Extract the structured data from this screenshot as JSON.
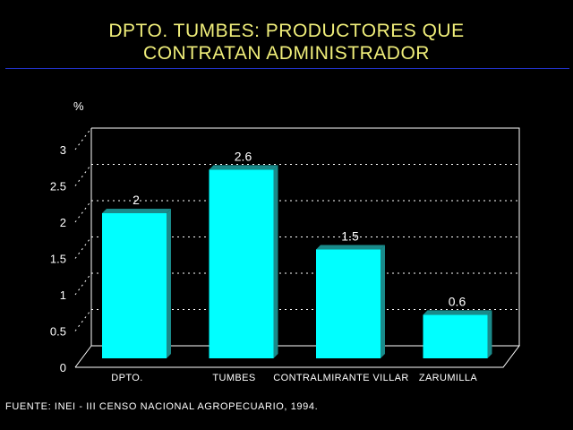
{
  "title_line1": "DPTO. TUMBES: PRODUCTORES QUE",
  "title_line2": "CONTRATAN ADMINISTRADOR",
  "source": "FUENTE: INEI - III CENSO NACIONAL AGROPECUARIO, 1994.",
  "colors": {
    "bar": "#00ffff",
    "bar_side": "#1a8a8a",
    "grid": "#ffffff",
    "text": "#ffffff",
    "title": "#f0ee7a"
  },
  "chart_data": {
    "type": "bar",
    "title": "DPTO. TUMBES: PRODUCTORES QUE CONTRATAN ADMINISTRADOR",
    "ylabel": "%",
    "xlabel": "",
    "categories": [
      "DPTO.",
      "TUMBES",
      "CONTRALMIRANTE VILLAR",
      "ZARUMILLA"
    ],
    "values": [
      2,
      2.6,
      1.5,
      0.6
    ],
    "value_labels": [
      "2",
      "2.6",
      "1.5",
      "0.6"
    ],
    "yticks": [
      "0",
      "0.5",
      "1",
      "1.5",
      "2",
      "2.5",
      "3"
    ],
    "ylim": [
      0,
      3
    ],
    "grid": true,
    "style": "3d"
  }
}
